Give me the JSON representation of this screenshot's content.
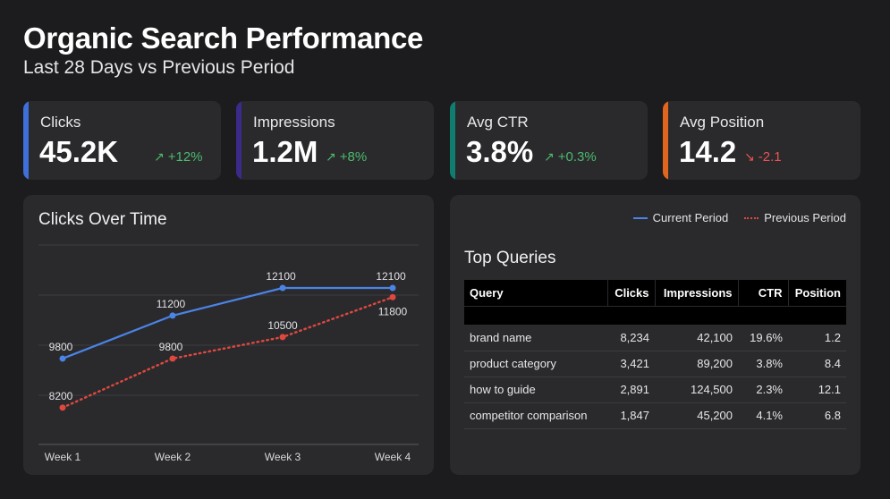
{
  "header": {
    "title": "Organic Search Performance",
    "subtitle": "Last 28 Days vs Previous Period"
  },
  "kpis": [
    {
      "label": "Clicks",
      "value": "45.2K",
      "delta": "+12%",
      "direction": "up",
      "accent": "#3f6fd8"
    },
    {
      "label": "Impressions",
      "value": "1.2M",
      "delta": "+8%",
      "direction": "up",
      "accent": "#3b2a8a"
    },
    {
      "label": "Avg CTR",
      "value": "3.8%",
      "delta": "+0.3%",
      "direction": "up",
      "accent": "#0f7e6e"
    },
    {
      "label": "Avg Position",
      "value": "14.2",
      "delta": "-2.1",
      "direction": "down",
      "accent": "#e0651f"
    }
  ],
  "colors": {
    "current": "#4b84e6",
    "previous": "#e0483f",
    "positive": "#4cbb6c",
    "negative": "#ea5450"
  },
  "chart_data": {
    "type": "line",
    "title": "Clicks Over Time",
    "categories": [
      "Week 1",
      "Week 2",
      "Week 3",
      "Week 4"
    ],
    "series": [
      {
        "name": "Current Period",
        "values": [
          9800,
          11200,
          12100,
          12100
        ],
        "color": "#4b84e6",
        "style": "solid"
      },
      {
        "name": "Previous Period",
        "values": [
          8200,
          9800,
          10500,
          11800
        ],
        "color": "#e0483f",
        "style": "dotted"
      }
    ],
    "ylim": [
      7000,
      13500
    ],
    "grid": true,
    "legend_placement": "top-right"
  },
  "top_queries": {
    "title": "Top Queries",
    "columns": [
      "Query",
      "Clicks",
      "Impressions",
      "CTR",
      "Position"
    ],
    "rows": [
      [
        "brand name",
        "8,234",
        "42,100",
        "19.6%",
        "1.2"
      ],
      [
        "product category",
        "3,421",
        "89,200",
        "3.8%",
        "8.4"
      ],
      [
        "how to guide",
        "2,891",
        "124,500",
        "2.3%",
        "12.1"
      ],
      [
        "competitor comparison",
        "1,847",
        "45,200",
        "4.1%",
        "6.8"
      ]
    ]
  }
}
